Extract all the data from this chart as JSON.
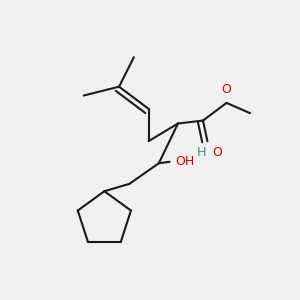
{
  "background_color": "#f0f0f0",
  "bond_color": "#1a1a1a",
  "oxygen_color": "#cc0000",
  "hydrogen_color": "#4a8a8a",
  "bond_width": 1.5,
  "dbo": 0.018,
  "figsize": [
    3.0,
    3.0
  ],
  "dpi": 100,
  "xlim": [
    0,
    1
  ],
  "ylim": [
    0,
    1
  ]
}
